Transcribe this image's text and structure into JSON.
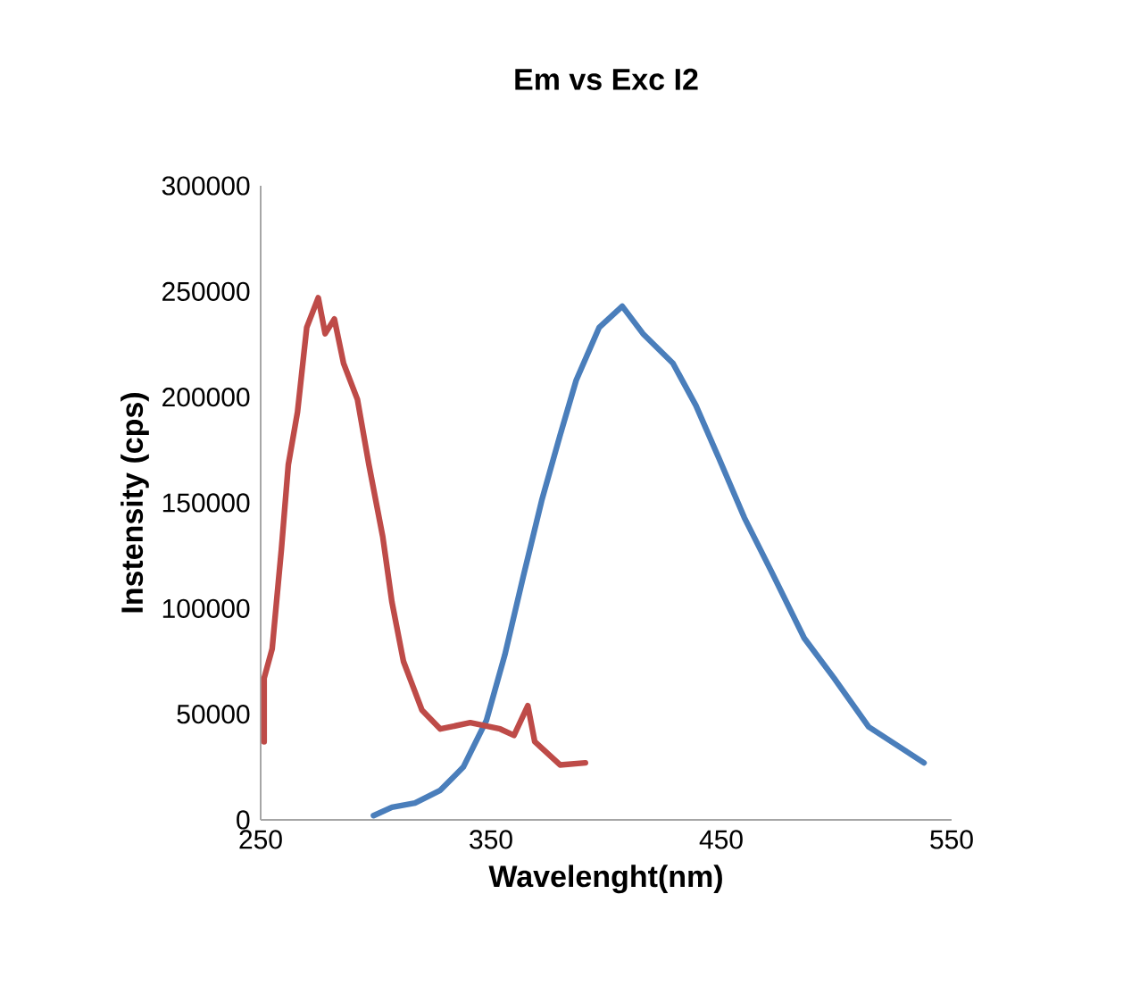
{
  "chart_data": {
    "type": "line",
    "title": "Em vs Exc I2",
    "xlabel": "Wavelenght(nm)",
    "ylabel": "Instensity (cps)",
    "xlim": [
      250,
      550
    ],
    "xticks": [
      250,
      350,
      450,
      550
    ],
    "ylim": [
      0,
      300000
    ],
    "yticks": [
      0,
      50000,
      100000,
      150000,
      200000,
      250000,
      300000
    ],
    "grid": false,
    "marker": "none",
    "line_style": "solid",
    "series": [
      {
        "color": "#4a7ebb",
        "x": [
          299,
          307,
          317,
          328,
          338,
          348,
          356,
          364,
          372,
          380,
          387,
          397,
          407,
          416,
          429,
          439,
          449,
          460,
          472,
          486,
          499,
          514,
          538
        ],
        "values": [
          2000,
          6000,
          8000,
          14000,
          25000,
          47000,
          78000,
          115000,
          151000,
          182000,
          208000,
          233000,
          243000,
          230000,
          216000,
          196000,
          171000,
          143000,
          117000,
          86000,
          67000,
          44000,
          27000
        ]
      },
      {
        "color": "#be4b48",
        "x": [
          251.5,
          251.5,
          255,
          259,
          262,
          266,
          270,
          275,
          278,
          282,
          286,
          292,
          297,
          303,
          307,
          312,
          320,
          328,
          341,
          354,
          360,
          366,
          369,
          380,
          391
        ],
        "values": [
          37000,
          67000,
          81000,
          128000,
          168000,
          193000,
          233000,
          247000,
          230000,
          237000,
          216000,
          199000,
          168000,
          134000,
          103000,
          75000,
          52000,
          43000,
          46000,
          43000,
          40000,
          54000,
          37000,
          26000,
          27000
        ]
      }
    ]
  }
}
